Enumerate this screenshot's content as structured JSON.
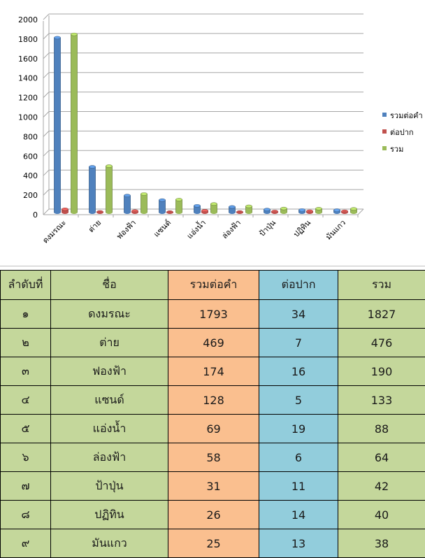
{
  "chart_data": {
    "type": "bar",
    "categories": [
      "ดงมรณะ",
      "ต่าย",
      "ฟองฟ้า",
      "แซนด์",
      "แอ่งน้ำ",
      "ล่องฟ้า",
      "ป้าปุ่น",
      "ปฏิทิน",
      "มันแกว"
    ],
    "series": [
      {
        "name": "รวมต่อคำ",
        "color": "#4f81bd",
        "values": [
          1793,
          469,
          174,
          128,
          69,
          58,
          31,
          26,
          25
        ]
      },
      {
        "name": "ต่อปาก",
        "color": "#c0504d",
        "values": [
          34,
          7,
          16,
          5,
          19,
          6,
          11,
          14,
          13
        ]
      },
      {
        "name": "รวม",
        "color": "#9bbb59",
        "values": [
          1827,
          476,
          190,
          133,
          88,
          64,
          42,
          40,
          38
        ]
      }
    ],
    "ylim": [
      0,
      2000
    ],
    "yticks": [
      0,
      200,
      400,
      600,
      800,
      1000,
      1200,
      1400,
      1600,
      1800,
      2000
    ],
    "grid": true,
    "legend": "right"
  },
  "table": {
    "headers": [
      "ลำดับที่",
      "ชื่อ",
      "รวมต่อคำ",
      "ต่อปาก",
      "รวม"
    ],
    "rows": [
      [
        "๑",
        "ดงมรณะ",
        "1793",
        "34",
        "1827"
      ],
      [
        "๒",
        "ต่าย",
        "469",
        "7",
        "476"
      ],
      [
        "๓",
        "ฟองฟ้า",
        "174",
        "16",
        "190"
      ],
      [
        "๔",
        "แซนด์",
        "128",
        "5",
        "133"
      ],
      [
        "๕",
        "แอ่งน้ำ",
        "69",
        "19",
        "88"
      ],
      [
        "๖",
        "ล่องฟ้า",
        "58",
        "6",
        "64"
      ],
      [
        "๗",
        "ป้าปุ่น",
        "31",
        "11",
        "42"
      ],
      [
        "๘",
        "ปฏิทิน",
        "26",
        "14",
        "40"
      ],
      [
        "๙",
        "มันแกว",
        "25",
        "13",
        "38"
      ]
    ]
  }
}
